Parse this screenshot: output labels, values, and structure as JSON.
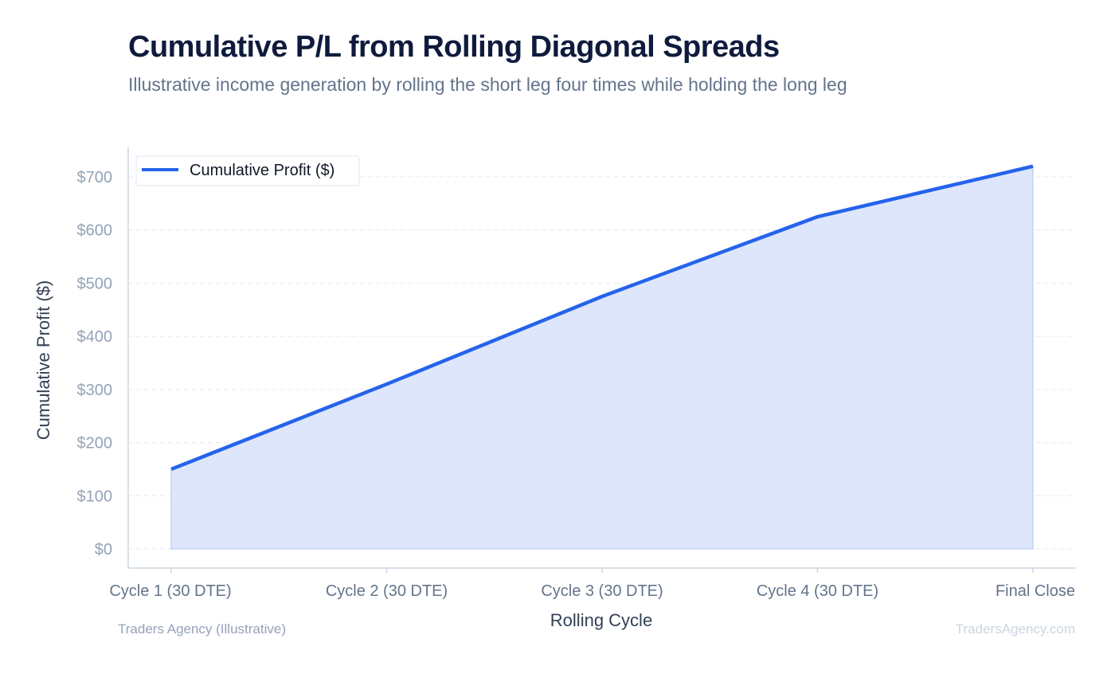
{
  "header": {
    "title": "Cumulative P/L from Rolling Diagonal Spreads",
    "subtitle": "Illustrative income generation by rolling the short leg four times while holding the long leg"
  },
  "footer": {
    "left": "Traders Agency (Illustrative)",
    "right": "TradersAgency.com"
  },
  "colors": {
    "line": "#2563eb",
    "fill": "#dde6fb",
    "axis": "#cbd5e1",
    "tick_text": "#94a3b8",
    "category_text": "#64748b",
    "axis_title": "#334155"
  },
  "chart_data": {
    "type": "area",
    "categories": [
      "Cycle 1 (30 DTE)",
      "Cycle 2 (30 DTE)",
      "Cycle 3 (30 DTE)",
      "Cycle 4 (30 DTE)",
      "Final Close"
    ],
    "series": [
      {
        "name": "Cumulative Profit ($)",
        "values": [
          150,
          310,
          475,
          625,
          720
        ]
      }
    ],
    "xlabel": "Rolling Cycle",
    "ylabel": "Cumulative Profit ($)",
    "ylim": [
      0,
      700
    ],
    "yticks": [
      "$0",
      "$100",
      "$200",
      "$300",
      "$400",
      "$500",
      "$600",
      "$700"
    ],
    "ytick_values": [
      0,
      100,
      200,
      300,
      400,
      500,
      600,
      700
    ],
    "grid": true,
    "legend": "top-left"
  }
}
